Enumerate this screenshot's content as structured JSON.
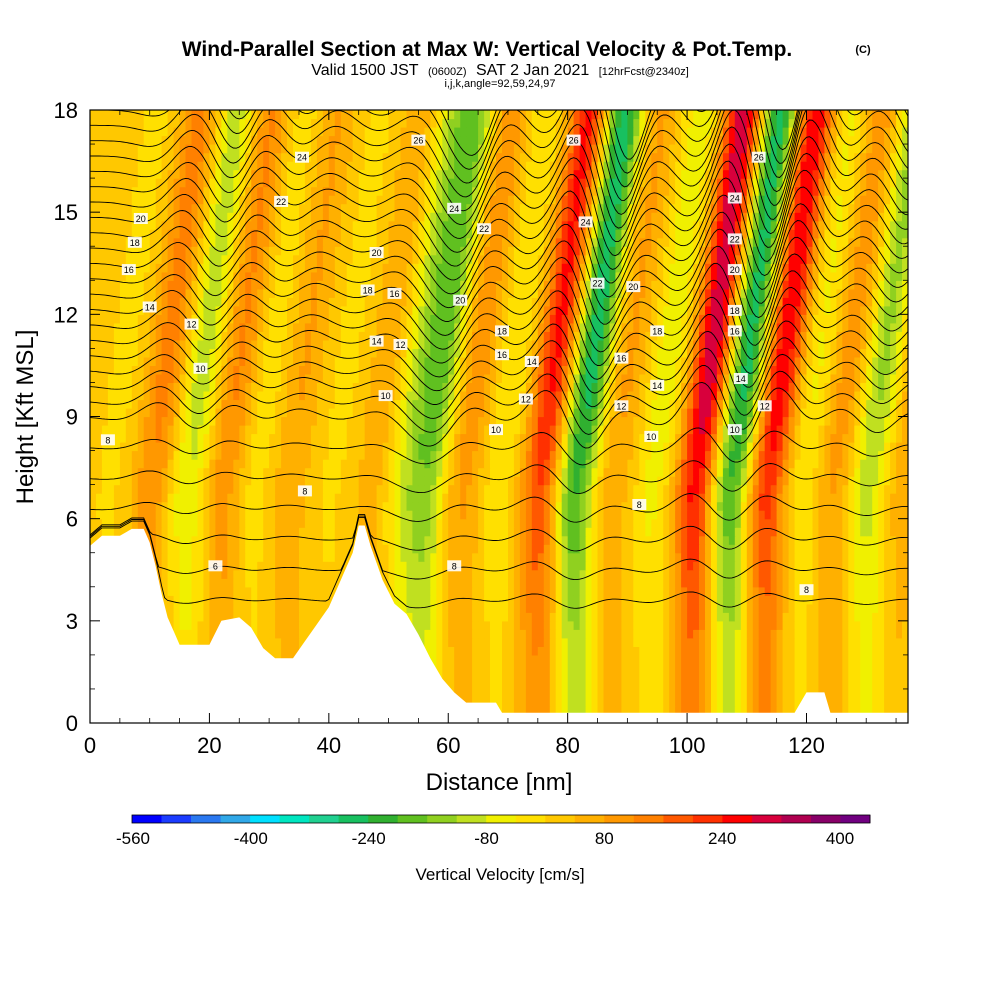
{
  "chart_data": {
    "type": "heatmap",
    "title": "Wind-Parallel Section at Max W: Vertical Velocity & Pot.Temp.",
    "title_mark": "(C)",
    "subtitle_parts": [
      "Valid 1500 JST",
      "(0600Z)",
      "SAT 2 Jan 2021",
      "[12hrFcst@2340z]"
    ],
    "subtitle2": "i,j,k,angle=92,59,24,97",
    "xlabel": "Distance [nm]",
    "ylabel": "Height [Kft MSL]",
    "xlim": [
      0,
      137
    ],
    "ylim": [
      0,
      18
    ],
    "x_ticks": [
      "0",
      "20",
      "40",
      "60",
      "80",
      "100",
      "120"
    ],
    "y_ticks": [
      "0",
      "3",
      "6",
      "9",
      "12",
      "15",
      "18"
    ],
    "colorbar": {
      "title": "Vertical Velocity [cm/s]",
      "labels": [
        "-560",
        "-400",
        "-240",
        "-80",
        "80",
        "240",
        "400"
      ],
      "colors": [
        "#0000ff",
        "#1b3cff",
        "#2a78f0",
        "#30a8e8",
        "#00e0ff",
        "#00e6c0",
        "#20d090",
        "#18c060",
        "#30b030",
        "#60c020",
        "#90d020",
        "#c0e020",
        "#f0f000",
        "#ffe000",
        "#ffc800",
        "#ffb000",
        "#ff9800",
        "#ff8000",
        "#ff5800",
        "#ff3000",
        "#ff0000",
        "#d8003c",
        "#b00050",
        "#880068",
        "#700080"
      ]
    },
    "w_peaks": [
      {
        "x": 3,
        "w": -30
      },
      {
        "x": 10,
        "w": 130
      },
      {
        "x": 16,
        "w": -130
      },
      {
        "x": 22,
        "w": 120
      },
      {
        "x": 27,
        "w": -50
      },
      {
        "x": 33,
        "w": 70
      },
      {
        "x": 40,
        "w": -30
      },
      {
        "x": 47,
        "w": 60
      },
      {
        "x": 52,
        "w": -100
      },
      {
        "x": 56,
        "w": -200
      },
      {
        "x": 62,
        "w": 100
      },
      {
        "x": 68,
        "w": -60
      },
      {
        "x": 75,
        "w": 250
      },
      {
        "x": 81,
        "w": -300
      },
      {
        "x": 87,
        "w": 80
      },
      {
        "x": 94,
        "w": -90
      },
      {
        "x": 101,
        "w": 320
      },
      {
        "x": 107,
        "w": -300
      },
      {
        "x": 113,
        "w": 280
      },
      {
        "x": 119,
        "w": -80
      },
      {
        "x": 124,
        "w": 100
      },
      {
        "x": 130,
        "w": -160
      },
      {
        "x": 135,
        "w": 60
      }
    ],
    "terrain": [
      {
        "x": 0,
        "h": 5.2
      },
      {
        "x": 2,
        "h": 5.5
      },
      {
        "x": 5,
        "h": 5.5
      },
      {
        "x": 7,
        "h": 5.7
      },
      {
        "x": 9,
        "h": 5.7
      },
      {
        "x": 10,
        "h": 5.3
      },
      {
        "x": 11,
        "h": 4.6
      },
      {
        "x": 12,
        "h": 3.8
      },
      {
        "x": 13,
        "h": 3.1
      },
      {
        "x": 14,
        "h": 2.7
      },
      {
        "x": 15,
        "h": 2.3
      },
      {
        "x": 20,
        "h": 2.3
      },
      {
        "x": 22,
        "h": 3.0
      },
      {
        "x": 25,
        "h": 3.1
      },
      {
        "x": 27,
        "h": 2.8
      },
      {
        "x": 29,
        "h": 2.2
      },
      {
        "x": 31,
        "h": 1.9
      },
      {
        "x": 34,
        "h": 1.9
      },
      {
        "x": 36,
        "h": 2.4
      },
      {
        "x": 38,
        "h": 2.9
      },
      {
        "x": 40,
        "h": 3.4
      },
      {
        "x": 42,
        "h": 4.2
      },
      {
        "x": 44,
        "h": 5.0
      },
      {
        "x": 45,
        "h": 5.8
      },
      {
        "x": 46,
        "h": 5.8
      },
      {
        "x": 47,
        "h": 5.2
      },
      {
        "x": 49,
        "h": 4.2
      },
      {
        "x": 51,
        "h": 3.5
      },
      {
        "x": 53,
        "h": 3.2
      },
      {
        "x": 55,
        "h": 2.6
      },
      {
        "x": 57,
        "h": 1.9
      },
      {
        "x": 59,
        "h": 1.3
      },
      {
        "x": 61,
        "h": 0.9
      },
      {
        "x": 63,
        "h": 0.6
      },
      {
        "x": 68,
        "h": 0.6
      },
      {
        "x": 69,
        "h": 0.3
      },
      {
        "x": 80,
        "h": 0.3
      },
      {
        "x": 118,
        "h": 0.3
      },
      {
        "x": 120,
        "h": 0.9
      },
      {
        "x": 123,
        "h": 0.9
      },
      {
        "x": 124,
        "h": 0.3
      },
      {
        "x": 137,
        "h": 0.3
      }
    ],
    "theta_contours": {
      "levels": [
        6,
        8,
        10,
        12,
        14,
        16,
        18,
        20,
        22,
        24,
        26,
        28
      ],
      "labels": [
        {
          "text": "6",
          "x": 21,
          "y": 4.6
        },
        {
          "text": "8",
          "x": 3,
          "y": 8.3
        },
        {
          "text": "8",
          "x": 36,
          "y": 6.8
        },
        {
          "text": "8",
          "x": 61,
          "y": 4.6
        },
        {
          "text": "8",
          "x": 92,
          "y": 6.4
        },
        {
          "text": "8",
          "x": 120,
          "y": 3.9
        },
        {
          "text": "10",
          "x": 18.5,
          "y": 10.4
        },
        {
          "text": "10",
          "x": 49.5,
          "y": 9.6
        },
        {
          "text": "10",
          "x": 68,
          "y": 8.6
        },
        {
          "text": "10",
          "x": 94,
          "y": 8.4
        },
        {
          "text": "10",
          "x": 108,
          "y": 8.6
        },
        {
          "text": "12",
          "x": 17,
          "y": 11.7
        },
        {
          "text": "12",
          "x": 52,
          "y": 11.1
        },
        {
          "text": "12",
          "x": 73,
          "y": 9.5
        },
        {
          "text": "12",
          "x": 89,
          "y": 9.3
        },
        {
          "text": "12",
          "x": 113,
          "y": 9.3
        },
        {
          "text": "14",
          "x": 10,
          "y": 12.2
        },
        {
          "text": "14",
          "x": 48,
          "y": 11.2
        },
        {
          "text": "14",
          "x": 74,
          "y": 10.6
        },
        {
          "text": "14",
          "x": 95,
          "y": 9.9
        },
        {
          "text": "14",
          "x": 109,
          "y": 10.1
        },
        {
          "text": "16",
          "x": 6.5,
          "y": 13.3
        },
        {
          "text": "16",
          "x": 51,
          "y": 12.6
        },
        {
          "text": "16",
          "x": 69,
          "y": 10.8
        },
        {
          "text": "16",
          "x": 89,
          "y": 10.7
        },
        {
          "text": "16",
          "x": 108,
          "y": 11.5
        },
        {
          "text": "18",
          "x": 7.5,
          "y": 14.1
        },
        {
          "text": "18",
          "x": 46.5,
          "y": 12.7
        },
        {
          "text": "18",
          "x": 69,
          "y": 11.5
        },
        {
          "text": "18",
          "x": 95,
          "y": 11.5
        },
        {
          "text": "18",
          "x": 108,
          "y": 12.1
        },
        {
          "text": "20",
          "x": 8.5,
          "y": 14.8
        },
        {
          "text": "20",
          "x": 48,
          "y": 13.8
        },
        {
          "text": "20",
          "x": 62,
          "y": 12.4
        },
        {
          "text": "20",
          "x": 91,
          "y": 12.8
        },
        {
          "text": "20",
          "x": 108,
          "y": 13.3
        },
        {
          "text": "22",
          "x": 32,
          "y": 15.3
        },
        {
          "text": "22",
          "x": 66,
          "y": 14.5
        },
        {
          "text": "22",
          "x": 85,
          "y": 12.9
        },
        {
          "text": "22",
          "x": 108,
          "y": 14.2
        },
        {
          "text": "24",
          "x": 35.5,
          "y": 16.6
        },
        {
          "text": "24",
          "x": 61,
          "y": 15.1
        },
        {
          "text": "24",
          "x": 83,
          "y": 14.7
        },
        {
          "text": "24",
          "x": 108,
          "y": 15.4
        },
        {
          "text": "26",
          "x": 55,
          "y": 17.1
        },
        {
          "text": "26",
          "x": 81,
          "y": 17.1
        },
        {
          "text": "26",
          "x": 112,
          "y": 16.6
        }
      ]
    }
  }
}
